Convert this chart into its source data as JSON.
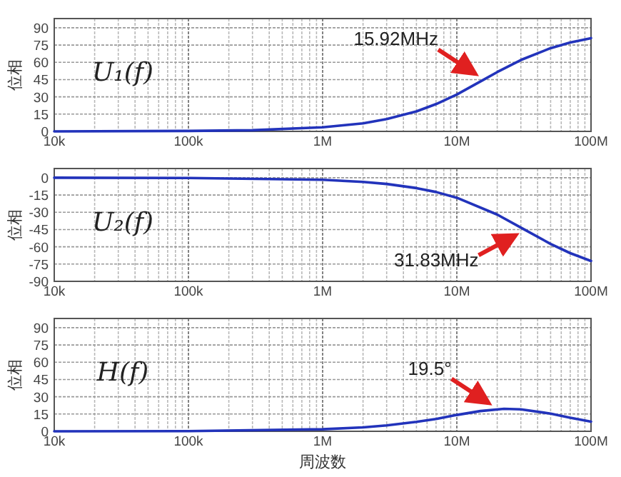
{
  "chart_data": [
    {
      "type": "line",
      "ylabel": "位相",
      "log": "x",
      "grid": true,
      "line_style": "solid",
      "marker": "none",
      "annotations": [
        "U₁(f)",
        {
          "text": "15.92MHz",
          "x": 15920000,
          "y": 45
        }
      ],
      "x": [
        10000,
        100000,
        300000,
        1000000,
        2000000,
        3000000,
        5000000,
        7000000,
        10000000,
        15920000,
        20000000,
        30000000,
        50000000,
        70000000,
        100000000
      ],
      "series": [
        {
          "color": "#2233bb",
          "values": [
            0,
            0.4,
            1,
            3.6,
            7,
            10.7,
            17.4,
            23.7,
            32,
            45,
            51.5,
            62,
            72.3,
            77.2,
            81
          ]
        }
      ],
      "xlim": [
        10000,
        100000000
      ],
      "xticks": [
        {
          "value": 10000,
          "label": "10k"
        },
        {
          "value": 100000,
          "label": "100k"
        },
        {
          "value": 1000000,
          "label": "1M"
        },
        {
          "value": 10000000,
          "label": "10M"
        },
        {
          "value": 100000000,
          "label": "100M"
        }
      ],
      "ylim": [
        0,
        98
      ],
      "yticks": [
        0,
        15,
        30,
        45,
        60,
        75,
        90
      ]
    },
    {
      "type": "line",
      "ylabel": "位相",
      "log": "x",
      "grid": true,
      "line_style": "solid",
      "marker": "none",
      "annotations": [
        "U₂(f)",
        {
          "text": "31.83MHz",
          "x": 31830000,
          "y": -45
        }
      ],
      "x": [
        10000,
        100000,
        1000000,
        2000000,
        3000000,
        5000000,
        7000000,
        10000000,
        20000000,
        31830000,
        50000000,
        70000000,
        100000000
      ],
      "series": [
        {
          "color": "#2233bb",
          "values": [
            0,
            -0.2,
            -1.8,
            -3.6,
            -5.4,
            -9,
            -12.4,
            -17.4,
            -32,
            -45,
            -57.5,
            -65.5,
            -72.3
          ]
        }
      ],
      "xlim": [
        10000,
        100000000
      ],
      "xticks": [
        {
          "value": 10000,
          "label": "10k"
        },
        {
          "value": 100000,
          "label": "100k"
        },
        {
          "value": 1000000,
          "label": "1M"
        },
        {
          "value": 10000000,
          "label": "10M"
        },
        {
          "value": 100000000,
          "label": "100M"
        }
      ],
      "ylim": [
        -90,
        8
      ],
      "yticks": [
        0,
        -15,
        -30,
        -45,
        -60,
        -75,
        -90
      ]
    },
    {
      "type": "line",
      "ylabel": "位相",
      "xlabel": "周波数",
      "log": "x",
      "grid": true,
      "line_style": "solid",
      "marker": "none",
      "annotations": [
        "H(f)",
        {
          "text": "19.5°",
          "x": 20000000,
          "y": 19.5
        }
      ],
      "x": [
        10000,
        100000,
        1000000,
        2000000,
        3000000,
        5000000,
        7000000,
        10000000,
        15000000,
        22500000,
        30000000,
        50000000,
        70000000,
        100000000
      ],
      "series": [
        {
          "color": "#2233bb",
          "values": [
            0,
            0.2,
            1.8,
            3.4,
            5.1,
            8.2,
            10.7,
            14.2,
            17.6,
            19.5,
            19.1,
            15.4,
            11.8,
            8.4
          ]
        }
      ],
      "xlim": [
        10000,
        100000000
      ],
      "xticks": [
        {
          "value": 10000,
          "label": "10k"
        },
        {
          "value": 100000,
          "label": "100k"
        },
        {
          "value": 1000000,
          "label": "1M"
        },
        {
          "value": 10000000,
          "label": "10M"
        },
        {
          "value": 100000000,
          "label": "100M"
        }
      ],
      "ylim": [
        0,
        98
      ],
      "yticks": [
        0,
        15,
        30,
        45,
        60,
        75,
        90
      ]
    }
  ]
}
